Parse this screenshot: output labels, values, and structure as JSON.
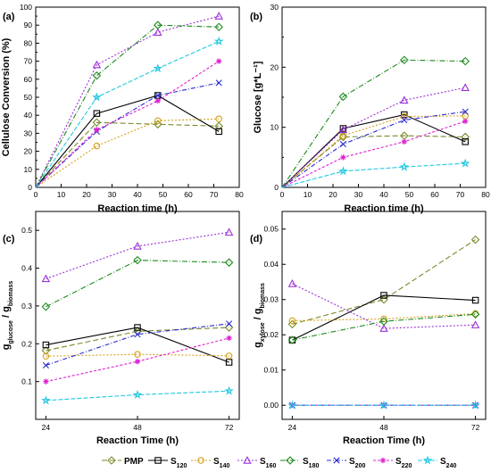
{
  "chart_data": [
    {
      "type": "line",
      "panel": "(a)",
      "xlabel": "Reaction time (h)",
      "ylabel": "Cellulose Conversion (%)",
      "xlim": [
        0,
        80
      ],
      "ylim": [
        0,
        100
      ],
      "xticks": [
        "0",
        "10",
        "20",
        "30",
        "40",
        "50",
        "60",
        "70",
        "80"
      ],
      "yticks": [
        "0",
        "10",
        "20",
        "30",
        "40",
        "50",
        "60",
        "70",
        "80",
        "90",
        "100"
      ],
      "series": [
        {
          "key": "PMP",
          "x": [
            0,
            24,
            48,
            72
          ],
          "y": [
            0,
            36,
            35,
            34
          ]
        },
        {
          "key": "S120",
          "x": [
            0,
            24,
            48,
            72
          ],
          "y": [
            0,
            41,
            51,
            31
          ]
        },
        {
          "key": "S140",
          "x": [
            0,
            24,
            48,
            72
          ],
          "y": [
            0,
            23,
            37,
            38
          ]
        },
        {
          "key": "S160",
          "x": [
            0,
            24,
            48,
            72
          ],
          "y": [
            0,
            68,
            86,
            95
          ]
        },
        {
          "key": "S180",
          "x": [
            0,
            24,
            48,
            72
          ],
          "y": [
            0,
            62,
            90,
            89
          ]
        },
        {
          "key": "S200",
          "x": [
            0,
            24,
            48,
            72
          ],
          "y": [
            0,
            31,
            51,
            58
          ]
        },
        {
          "key": "S220",
          "x": [
            0,
            24,
            48,
            72
          ],
          "y": [
            0,
            32,
            48,
            70
          ]
        },
        {
          "key": "S240",
          "x": [
            0,
            24,
            48,
            72
          ],
          "y": [
            0,
            50,
            66,
            81
          ]
        }
      ]
    },
    {
      "type": "line",
      "panel": "(b)",
      "xlabel": "Reaction time (h)",
      "ylabel": "Glucose [g*L⁻¹]",
      "xlim": [
        0,
        80
      ],
      "ylim": [
        0,
        30
      ],
      "xticks": [
        "0",
        "10",
        "20",
        "30",
        "40",
        "50",
        "60",
        "70",
        "80"
      ],
      "yticks": [
        "0",
        "10",
        "20",
        "30"
      ],
      "series": [
        {
          "key": "PMP",
          "x": [
            0,
            24,
            48,
            72
          ],
          "y": [
            0,
            8.4,
            8.6,
            8.4
          ]
        },
        {
          "key": "S120",
          "x": [
            0,
            24,
            48,
            72
          ],
          "y": [
            0,
            9.8,
            12.1,
            7.6
          ]
        },
        {
          "key": "S140",
          "x": [
            0,
            24,
            48,
            72
          ],
          "y": [
            0,
            8.6,
            11.8,
            11.9
          ]
        },
        {
          "key": "S160",
          "x": [
            0,
            24,
            48,
            72
          ],
          "y": [
            0,
            9.6,
            14.5,
            16.6
          ]
        },
        {
          "key": "S180",
          "x": [
            0,
            24,
            48,
            72
          ],
          "y": [
            0,
            15.1,
            21.2,
            21.0
          ]
        },
        {
          "key": "S200",
          "x": [
            0,
            24,
            48,
            72
          ],
          "y": [
            0,
            7.2,
            11.2,
            12.6
          ]
        },
        {
          "key": "S220",
          "x": [
            0,
            24,
            48,
            72
          ],
          "y": [
            0,
            5.0,
            7.6,
            11.0
          ]
        },
        {
          "key": "S240",
          "x": [
            0,
            24,
            48,
            72
          ],
          "y": [
            0,
            2.7,
            3.4,
            4.0
          ]
        }
      ]
    },
    {
      "type": "line",
      "panel": "(c)",
      "xlabel": "Reaction Time (h)",
      "ylabel": "g",
      "ylabel_parts": [
        {
          "text": "g",
          "sub": "glucose"
        },
        {
          "text": " / g",
          "sub": "biomass"
        }
      ],
      "categories": [
        "24",
        "48",
        "72"
      ],
      "ylim": [
        0,
        0.55
      ],
      "yticks": [
        "0.1",
        "0.2",
        "0.3",
        "0.4",
        "0.5"
      ],
      "series": [
        {
          "key": "PMP",
          "y": [
            0.182,
            0.233,
            0.243
          ]
        },
        {
          "key": "S120",
          "y": [
            0.197,
            0.243,
            0.151
          ]
        },
        {
          "key": "S140",
          "y": [
            0.167,
            0.172,
            0.168
          ]
        },
        {
          "key": "S160",
          "y": [
            0.372,
            0.458,
            0.495
          ]
        },
        {
          "key": "S180",
          "y": [
            0.298,
            0.421,
            0.415
          ]
        },
        {
          "key": "S200",
          "y": [
            0.143,
            0.225,
            0.253
          ]
        },
        {
          "key": "S220",
          "y": [
            0.1,
            0.153,
            0.215
          ]
        },
        {
          "key": "S240",
          "y": [
            0.05,
            0.065,
            0.075
          ]
        }
      ]
    },
    {
      "type": "line",
      "panel": "(d)",
      "xlabel": "Reaction Time (h)",
      "ylabel": "g",
      "ylabel_parts": [
        {
          "text": "g",
          "sub": "xylose"
        },
        {
          "text": " / g",
          "sub": "biomass"
        }
      ],
      "categories": [
        "24",
        "48",
        "72"
      ],
      "ylim": [
        -0.004,
        0.055
      ],
      "yticks": [
        "0.00",
        "0.01",
        "0.02",
        "0.03",
        "0.04",
        "0.05"
      ],
      "series": [
        {
          "key": "PMP",
          "y": [
            0.023,
            0.03,
            0.047
          ]
        },
        {
          "key": "S120",
          "y": [
            0.0185,
            0.0312,
            0.0298
          ]
        },
        {
          "key": "S140",
          "y": [
            0.024,
            0.0245,
            0.026
          ]
        },
        {
          "key": "S160",
          "y": [
            0.0345,
            0.0218,
            0.0228
          ]
        },
        {
          "key": "S180",
          "y": [
            0.0185,
            0.0238,
            0.0258
          ]
        },
        {
          "key": "S200",
          "y": [
            0.0,
            0.0,
            0.0
          ]
        },
        {
          "key": "S220",
          "y": [
            0.0,
            0.0,
            0.0
          ]
        },
        {
          "key": "S240",
          "y": [
            0.0,
            0.0,
            0.0
          ]
        }
      ]
    }
  ],
  "styles": {
    "PMP": {
      "color": "#7a8a2a",
      "dash": "6,3",
      "marker": "diamond"
    },
    "S120": {
      "color": "#000000",
      "dash": "",
      "marker": "square"
    },
    "S140": {
      "color": "#d4a017",
      "dash": "2,2",
      "marker": "circle"
    },
    "S160": {
      "color": "#9b30d9",
      "dash": "2,2",
      "marker": "triangle"
    },
    "S180": {
      "color": "#1e8a1e",
      "dash": "6,2,1,2",
      "marker": "diamond"
    },
    "S200": {
      "color": "#2b2bcf",
      "dash": "5,2,1,2",
      "marker": "x"
    },
    "S220": {
      "color": "#e020d0",
      "dash": "3,2",
      "marker": "asterisk"
    },
    "S240": {
      "color": "#22c8e0",
      "dash": "5,2",
      "marker": "star"
    }
  },
  "legend": [
    {
      "key": "PMP",
      "text": "PMP",
      "sub": ""
    },
    {
      "key": "S120",
      "text": "S",
      "sub": "120"
    },
    {
      "key": "S140",
      "text": "S",
      "sub": "140"
    },
    {
      "key": "S160",
      "text": "S",
      "sub": "160"
    },
    {
      "key": "S180",
      "text": "S",
      "sub": "180"
    },
    {
      "key": "S200",
      "text": "S",
      "sub": "200"
    },
    {
      "key": "S220",
      "text": "S",
      "sub": "220"
    },
    {
      "key": "S240",
      "text": "S",
      "sub": "240"
    }
  ],
  "legend_placement": "bottom"
}
